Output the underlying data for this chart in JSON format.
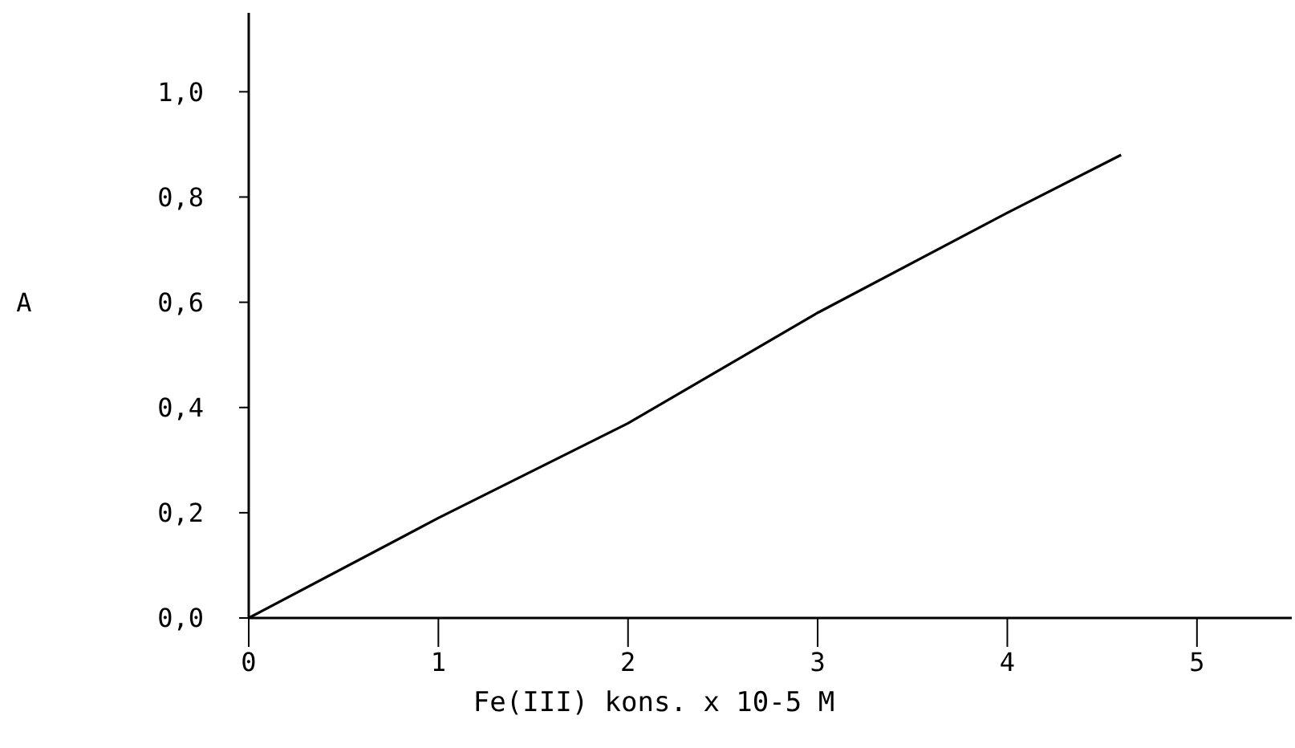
{
  "chart_data": {
    "type": "line",
    "xlabel": "Fe(III) kons. x 10-5 M",
    "ylabel": "A",
    "x": [
      0,
      1,
      2,
      3,
      4,
      4.6
    ],
    "series": [
      {
        "color": "#000000",
        "values": [
          0,
          0.19,
          0.37,
          0.58,
          0.77,
          0.88
        ]
      }
    ],
    "xlim": [
      0,
      5.5
    ],
    "ylim": [
      0,
      1.15
    ],
    "xticks": [
      0,
      1,
      2,
      3,
      4,
      5
    ],
    "yticks": [
      {
        "value": 0,
        "label": "0,0"
      },
      {
        "value": 0.2,
        "label": "0,2"
      },
      {
        "value": 0.4,
        "label": "0,4"
      },
      {
        "value": 0.6,
        "label": "0,6"
      },
      {
        "value": 0.8,
        "label": "0,8"
      },
      {
        "value": 1,
        "label": "1,0"
      }
    ],
    "marker": "none",
    "line_style": "solid"
  }
}
